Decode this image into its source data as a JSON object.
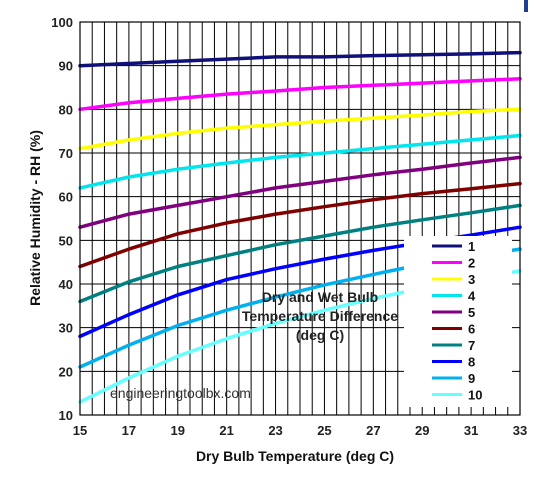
{
  "chart_data": {
    "type": "line",
    "xlabel": "Dry Bulb Temperature (deg C)",
    "ylabel": "Relative Humidity - RH (%)",
    "xlim": [
      15,
      33
    ],
    "ylim": [
      10,
      100
    ],
    "x_ticks": [
      "15",
      "17",
      "19",
      "21",
      "23",
      "25",
      "27",
      "29",
      "31",
      "33"
    ],
    "y_ticks": [
      "10",
      "20",
      "30",
      "40",
      "50",
      "60",
      "70",
      "80",
      "90",
      "100"
    ],
    "grid": true,
    "legend_position": "bottom-right",
    "annotation": [
      "Dry and Wet Bulb",
      "Temperature Difference",
      "(deg C)"
    ],
    "watermark": "engineeringtoolbx.com",
    "x": [
      15,
      17,
      19,
      21,
      23,
      25,
      27,
      29,
      31,
      33
    ],
    "series": [
      {
        "name": "1",
        "color": "#10107a",
        "values": [
          90,
          90.5,
          91,
          91.5,
          92,
          92,
          92.3,
          92.5,
          92.7,
          93
        ]
      },
      {
        "name": "2",
        "color": "#ff00ff",
        "values": [
          80,
          81.5,
          82.5,
          83.5,
          84.2,
          85,
          85.5,
          86,
          86.5,
          87
        ]
      },
      {
        "name": "3",
        "color": "#ffff00",
        "values": [
          71,
          73,
          74.5,
          75.7,
          76.5,
          77.3,
          78,
          78.7,
          79.5,
          80
        ]
      },
      {
        "name": "4",
        "color": "#00e5ee",
        "values": [
          62,
          64.5,
          66.3,
          67.7,
          69,
          70,
          71,
          72,
          73,
          74
        ]
      },
      {
        "name": "5",
        "color": "#800080",
        "values": [
          53,
          56,
          58,
          60,
          62,
          63.5,
          65,
          66.3,
          67.7,
          69
        ]
      },
      {
        "name": "6",
        "color": "#800000",
        "values": [
          44,
          48,
          51.5,
          54,
          56,
          57.7,
          59.3,
          60.7,
          61.8,
          63
        ]
      },
      {
        "name": "7",
        "color": "#008080",
        "values": [
          36,
          40.5,
          44,
          46.5,
          49,
          51,
          53,
          54.7,
          56.3,
          58
        ]
      },
      {
        "name": "8",
        "color": "#0000ff",
        "values": [
          28,
          33,
          37.5,
          41,
          43.5,
          45.7,
          47.7,
          49.5,
          51.2,
          53
        ]
      },
      {
        "name": "9",
        "color": "#00b0f0",
        "values": [
          21,
          26,
          30.5,
          34,
          37,
          39.8,
          42.2,
          44.5,
          46.3,
          48
        ]
      },
      {
        "name": "10",
        "color": "#66ffff",
        "values": [
          13,
          18.5,
          23.5,
          27.5,
          31,
          34,
          36.7,
          39,
          41,
          43
        ]
      }
    ]
  }
}
